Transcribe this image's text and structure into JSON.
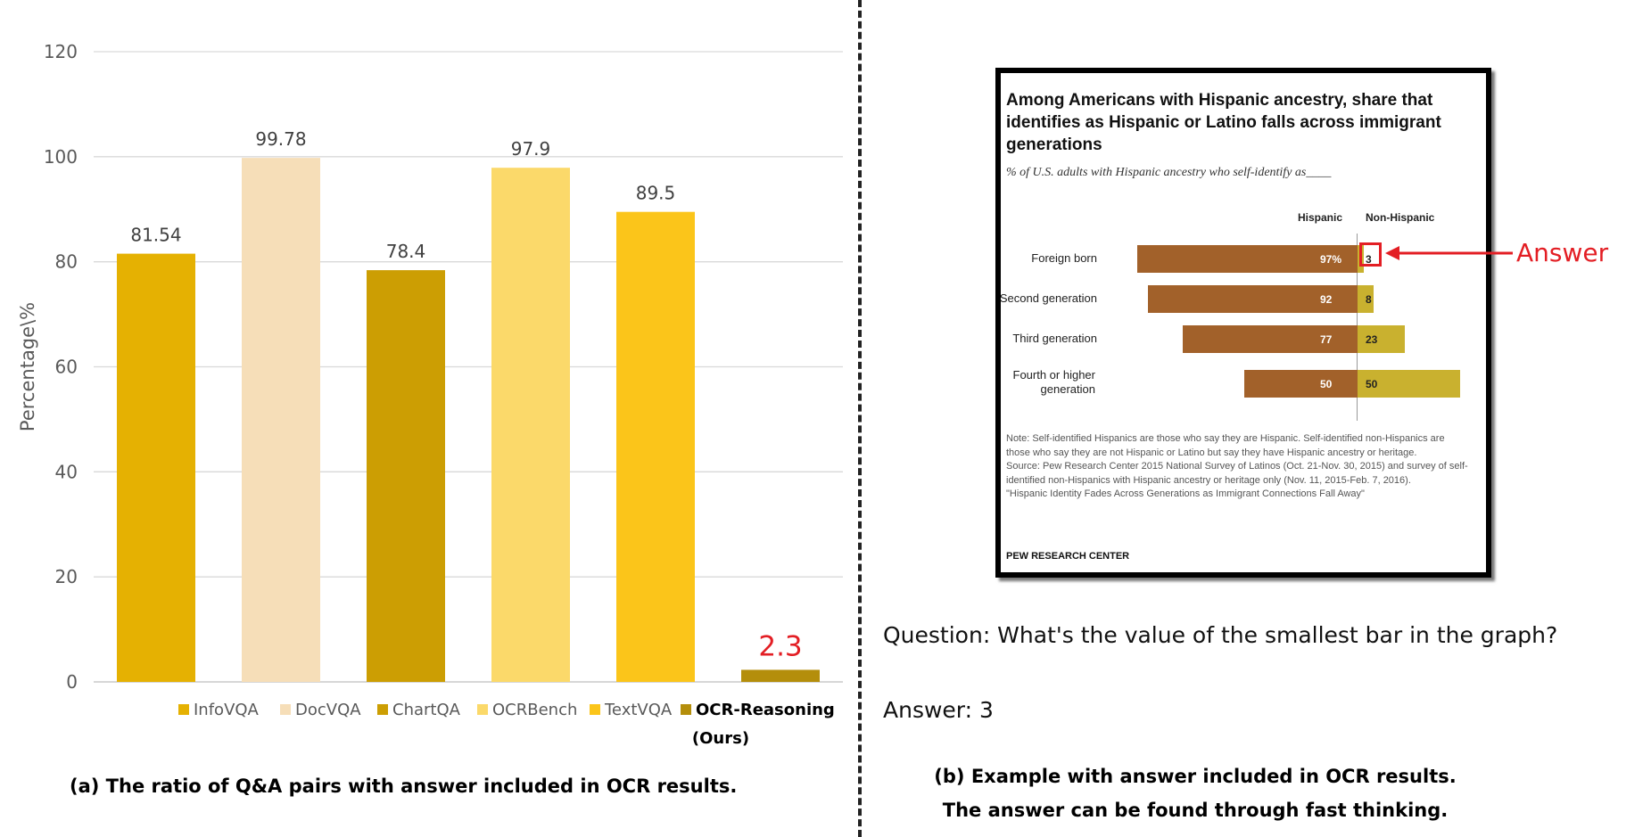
{
  "chart_data": {
    "type": "bar",
    "ylabel": "Percentage\\%",
    "ylim": [
      0,
      120
    ],
    "yticks": [
      0,
      20,
      40,
      60,
      80,
      100,
      120
    ],
    "grid": true,
    "legend_position": "bottom",
    "categories": [
      "InfoVQA",
      "DocVQA",
      "ChartQA",
      "OCRBench",
      "TextVQA",
      "OCR-Reasoning"
    ],
    "values": [
      81.54,
      99.78,
      78.4,
      97.9,
      89.5,
      2.3
    ],
    "value_labels": [
      "81.54",
      "99.78",
      "78.4",
      "97.9",
      "89.5",
      "2.3"
    ],
    "legend": [
      "InfoVQA",
      "DocVQA",
      "ChartQA",
      "OCRBench",
      "TextVQA",
      "OCR-Reasoning",
      "(Ours)"
    ],
    "colors": [
      "#e5b102",
      "#f6deb8",
      "#cc9e03",
      "#fbd96a",
      "#fbc51a",
      "#b48e0b"
    ],
    "highlight_label_color": "#e31e24"
  },
  "captions": {
    "a": "(a) The ratio of Q&A pairs  with answer included in OCR results.",
    "b_line1": "(b) Example with answer included in OCR results.",
    "b_line2": "The answer can be found through fast thinking."
  },
  "example": {
    "title": "Among Americans with Hispanic ancestry, share that identifies as Hispanic or Latino falls across immigrant generations",
    "subtitle": "% of U.S. adults with Hispanic ancestry who self-identify as____",
    "col_hispanic": "Hispanic",
    "col_non_hispanic": "Non-Hispanic",
    "rows": [
      {
        "label": "Foreign born",
        "hispanic": "97%",
        "non_hispanic": "3",
        "h_value": 97,
        "n_value": 3
      },
      {
        "label": "Second generation",
        "hispanic": "92",
        "non_hispanic": "8",
        "h_value": 92,
        "n_value": 8
      },
      {
        "label": "Third generation",
        "hispanic": "77",
        "non_hispanic": "23",
        "h_value": 77,
        "n_value": 23
      },
      {
        "label": "Fourth or higher generation",
        "hispanic": "50",
        "non_hispanic": "50",
        "h_value": 50,
        "n_value": 50
      }
    ],
    "note": "Note: Self-identified Hispanics are those who say they are Hispanic. Self-identified non-Hispanics are those who say they are not Hispanic or Latino but say they have Hispanic ancestry or heritage.\nSource: Pew Research Center 2015 National Survey of Latinos (Oct. 21-Nov. 30, 2015) and survey of self-identified non-Hispanics with Hispanic ancestry or heritage only (Nov. 11, 2015-Feb. 7, 2016).\n\"Hispanic Identity Fades Across Generations as Immigrant Connections Fall Away\"",
    "brand": "PEW RESEARCH CENTER",
    "answer_tag": "Answer",
    "question": "Question: What's the value of the smallest bar in the graph?",
    "answer": "Answer: 3"
  }
}
